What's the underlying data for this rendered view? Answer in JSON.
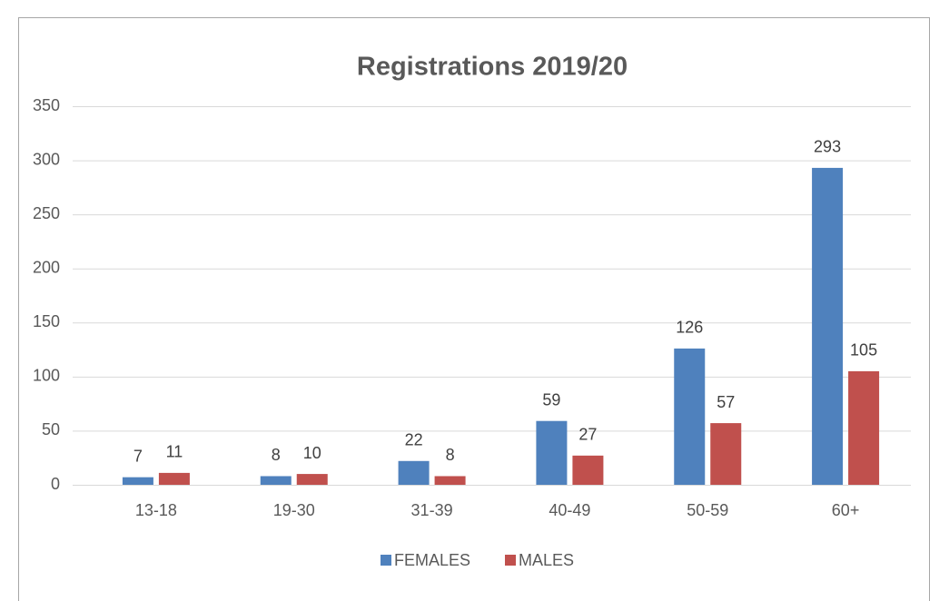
{
  "chart_data": {
    "type": "bar",
    "title": "Registrations 2019/20",
    "categories": [
      "13-18",
      "19-30",
      "31-39",
      "40-49",
      "50-59",
      "60+"
    ],
    "series": [
      {
        "name": "FEMALES",
        "color": "#4f81bd",
        "values": [
          7,
          8,
          22,
          59,
          126,
          293
        ]
      },
      {
        "name": "MALES",
        "color": "#c0504d",
        "values": [
          11,
          10,
          8,
          27,
          57,
          105
        ]
      }
    ],
    "ylim": [
      0,
      350
    ],
    "yticks": [
      0,
      50,
      100,
      150,
      200,
      250,
      300,
      350
    ],
    "grid": true,
    "legend": "bottom"
  }
}
